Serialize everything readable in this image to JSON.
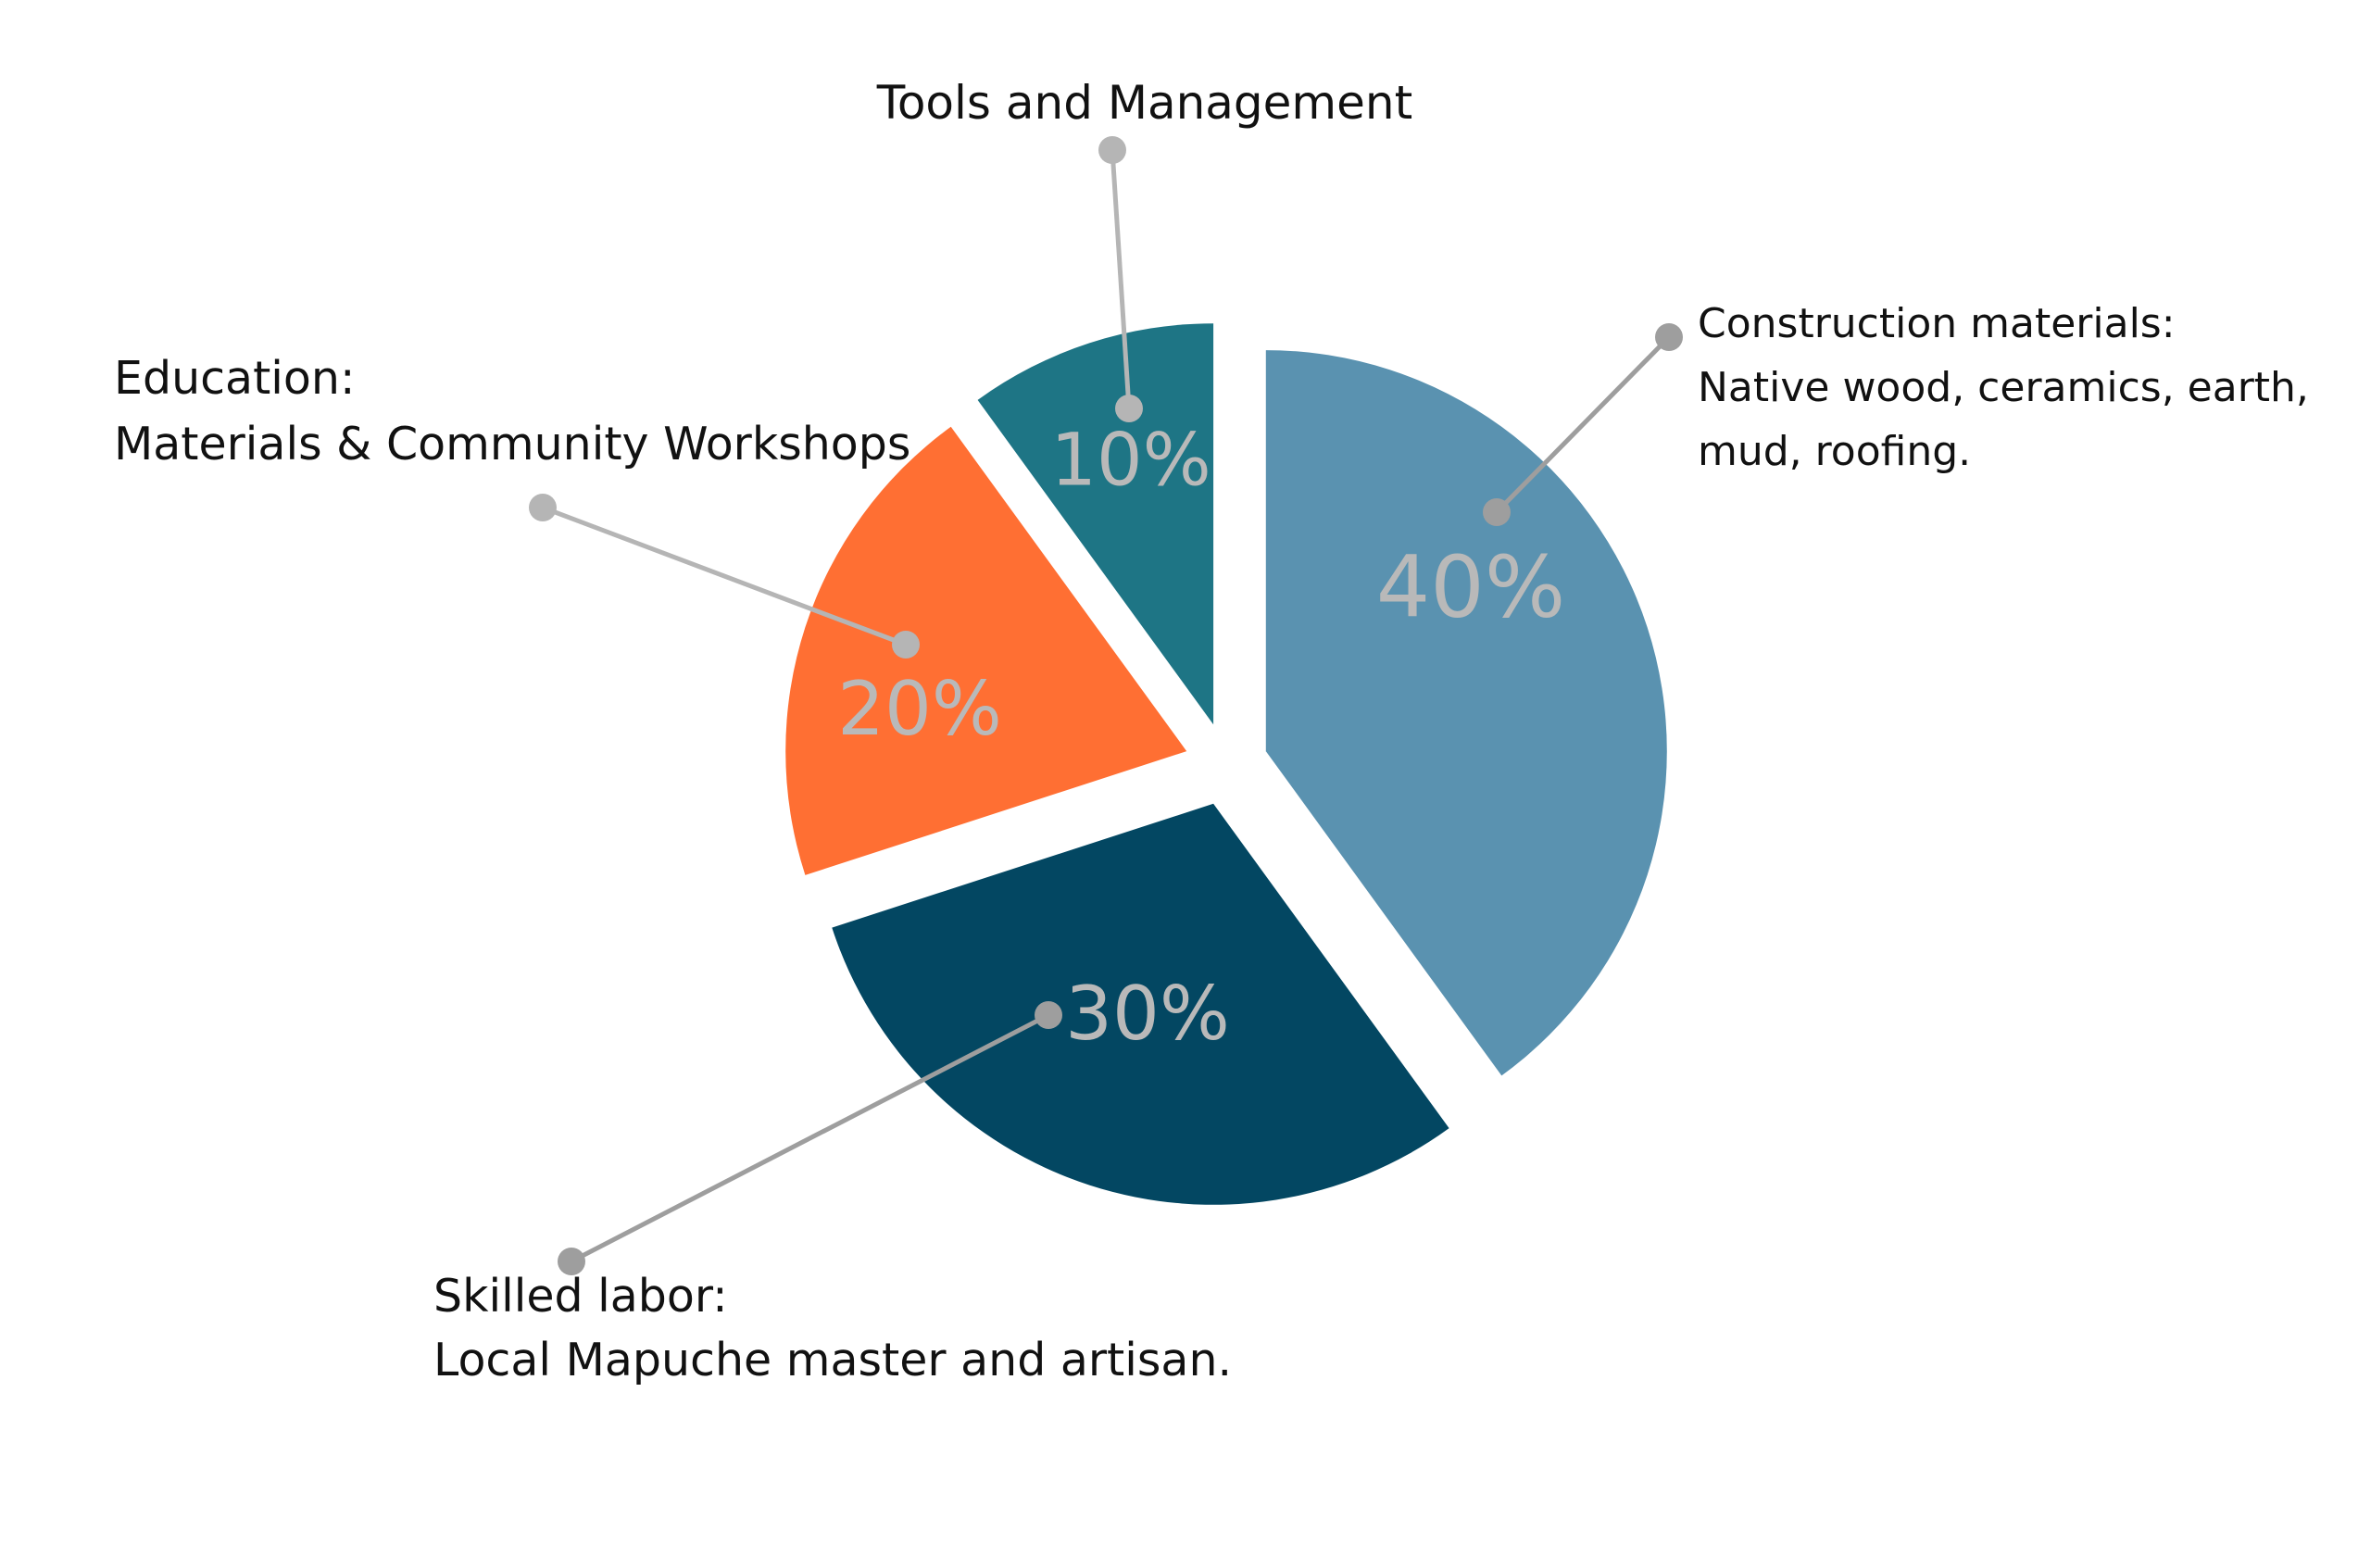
{
  "chart_data": {
    "type": "pie",
    "exploded": true,
    "start": "top, clockwise",
    "slices": [
      {
        "label": "Construction materials:",
        "detail": [
          "Native wood, ceramics, earth,",
          "mud, roofing."
        ],
        "value": 40,
        "value_label": "40%",
        "color": "#5a92b0"
      },
      {
        "label": "Skilled labor:",
        "detail": [
          "Local Mapuche master and artisan."
        ],
        "value": 30,
        "value_label": "30%",
        "color": "#034762"
      },
      {
        "label": "Education:",
        "detail": [
          "Materials & Community Workshops"
        ],
        "value": 20,
        "value_label": "20%",
        "color": "#ff6f33"
      },
      {
        "label": "Tools and Management",
        "detail": [],
        "value": 10,
        "value_label": "10%",
        "color": "#1e7585"
      }
    ],
    "leader_color": "#a8a8a8",
    "value_label_color": "#b9b9b9"
  }
}
